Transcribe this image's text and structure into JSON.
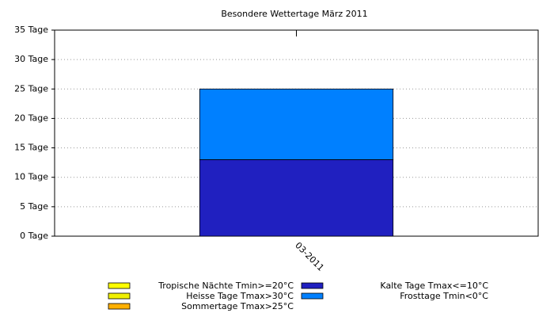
{
  "chart_data": {
    "type": "stacked-bar",
    "title": "Besondere Wettertage März 2011",
    "categories": [
      "03-2011"
    ],
    "series": [
      {
        "name": "Tropische Nächte Tmin>=20°C",
        "color": "#ffff00",
        "values": [
          0
        ]
      },
      {
        "name": "Heisse Tage Tmax>30°C",
        "color": "#f0f000",
        "values": [
          0
        ]
      },
      {
        "name": "Sommertage Tmax>25°C",
        "color": "#ffb000",
        "values": [
          0
        ]
      },
      {
        "name": "Kalte Tage Tmax<=10°C",
        "color": "#2020c0",
        "values": [
          13
        ]
      },
      {
        "name": "Frosttage Tmin<0°C",
        "color": "#0080ff",
        "values": [
          12
        ]
      }
    ],
    "ylim": [
      0,
      35
    ],
    "yticks": [
      {
        "value": 0,
        "label": "0 Tage"
      },
      {
        "value": 5,
        "label": "5 Tage"
      },
      {
        "value": 10,
        "label": "10 Tage"
      },
      {
        "value": 15,
        "label": "15 Tage"
      },
      {
        "value": 20,
        "label": "20 Tage"
      },
      {
        "value": 25,
        "label": "25 Tage"
      },
      {
        "value": 30,
        "label": "30 Tage"
      },
      {
        "value": 35,
        "label": "35 Tage"
      }
    ],
    "grid": true
  }
}
